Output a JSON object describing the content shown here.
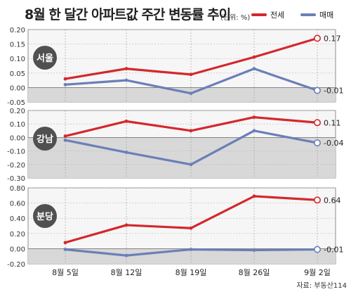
{
  "header": {
    "title": "8월 한 달간 아파트값 주간 변동률 추이",
    "unit": "(단위: %)",
    "legend": [
      {
        "name": "전세",
        "color": "#d3282d"
      },
      {
        "name": "매매",
        "color": "#6b7fb8"
      }
    ]
  },
  "source": "자료: 부동산114",
  "chart_data": [
    {
      "type": "line",
      "region_label": "서울",
      "x": [
        "8월 5일",
        "8월 12일",
        "8월 19일",
        "8월 26일",
        "9월 2일"
      ],
      "ylim": [
        -0.05,
        0.2
      ],
      "y_ticks": [
        "0.20",
        "0.15",
        "0.10",
        "0.05",
        "0.00",
        "-0.05"
      ],
      "shaded_below_zero": true,
      "series": [
        {
          "name": "전세",
          "values": [
            0.03,
            0.065,
            0.045,
            0.105,
            0.17
          ],
          "end_label": "0.17"
        },
        {
          "name": "매매",
          "values": [
            0.01,
            0.025,
            -0.02,
            0.065,
            -0.01
          ],
          "end_label": "-0.01"
        }
      ]
    },
    {
      "type": "line",
      "region_label": "강남",
      "x": [
        "8월 5일",
        "8월 12일",
        "8월 19일",
        "8월 26일",
        "9월 2일"
      ],
      "ylim": [
        -0.3,
        0.2
      ],
      "y_ticks": [
        "0.20",
        "0.10",
        "0.00",
        "-0.10",
        "-0.20",
        "-0.30"
      ],
      "shaded_below_zero": true,
      "series": [
        {
          "name": "전세",
          "values": [
            0.01,
            0.12,
            0.05,
            0.15,
            0.11
          ],
          "end_label": "0.11"
        },
        {
          "name": "매매",
          "values": [
            -0.02,
            -0.11,
            -0.2,
            0.05,
            -0.04
          ],
          "end_label": "-0.04"
        }
      ]
    },
    {
      "type": "line",
      "region_label": "분당",
      "x": [
        "8월 5일",
        "8월 12일",
        "8월 19일",
        "8월 26일",
        "9월 2일"
      ],
      "ylim": [
        -0.2,
        0.8
      ],
      "y_ticks": [
        "0.80",
        "0.60",
        "0.40",
        "0.20",
        "0.00",
        "-0.20"
      ],
      "shaded_below_zero": true,
      "series": [
        {
          "name": "전세",
          "values": [
            0.08,
            0.31,
            0.27,
            0.69,
            0.64
          ],
          "end_label": "0.64"
        },
        {
          "name": "매매",
          "values": [
            -0.01,
            -0.09,
            -0.01,
            -0.02,
            -0.01
          ],
          "end_label": "-0.01"
        }
      ]
    }
  ]
}
